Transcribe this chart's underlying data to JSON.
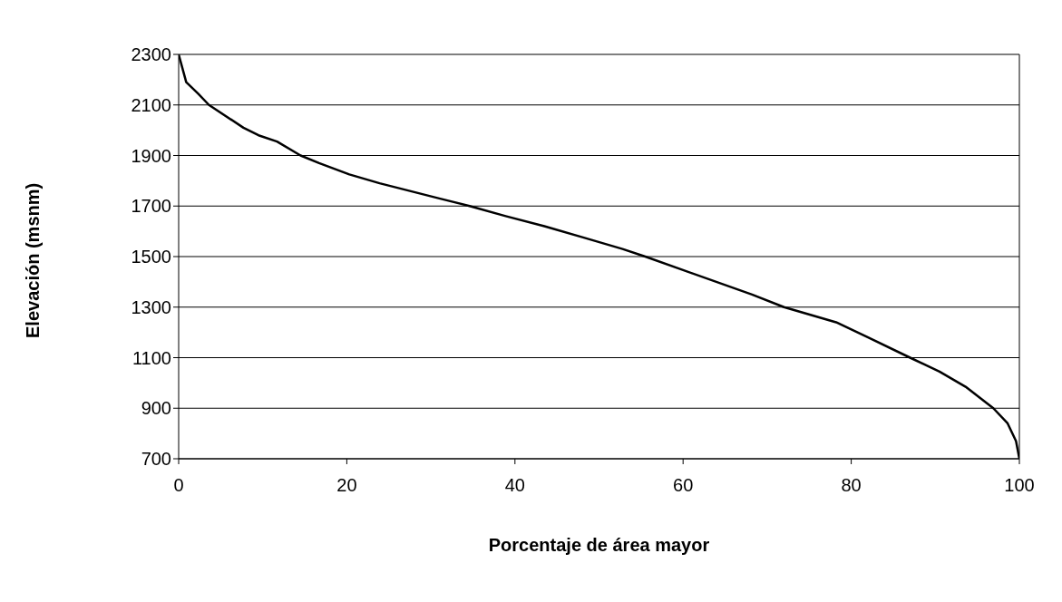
{
  "chart_data": {
    "type": "line",
    "xlabel": "Porcentaje de área mayor",
    "ylabel": "Elevación (msnm)",
    "x": [
      0,
      0.9,
      2.3,
      3.6,
      7.7,
      9.5,
      11.7,
      14.5,
      16.7,
      20.3,
      23.9,
      31,
      34.6,
      38.9,
      43.5,
      48.2,
      52.8,
      55.5,
      59.7,
      68.2,
      72,
      78.2,
      82,
      87,
      90.5,
      93.6,
      96.9,
      98.6,
      99.6,
      100
    ],
    "series": [
      {
        "color": "#000000",
        "values": [
          2300,
          2190,
          2145,
          2100,
          2010,
          1980,
          1955,
          1900,
          1870,
          1825,
          1790,
          1730,
          1700,
          1660,
          1620,
          1575,
          1530,
          1500,
          1450,
          1350,
          1300,
          1240,
          1180,
          1100,
          1045,
          985,
          900,
          840,
          770,
          700
        ]
      }
    ],
    "xlim": [
      0,
      100
    ],
    "xticks": [
      0,
      20,
      40,
      60,
      80,
      100
    ],
    "ylim": [
      700,
      2300
    ],
    "yticks": [
      700,
      900,
      1100,
      1300,
      1500,
      1700,
      1900,
      2100,
      2300
    ],
    "grid": "y",
    "marker": "none",
    "line_style": "solid"
  }
}
